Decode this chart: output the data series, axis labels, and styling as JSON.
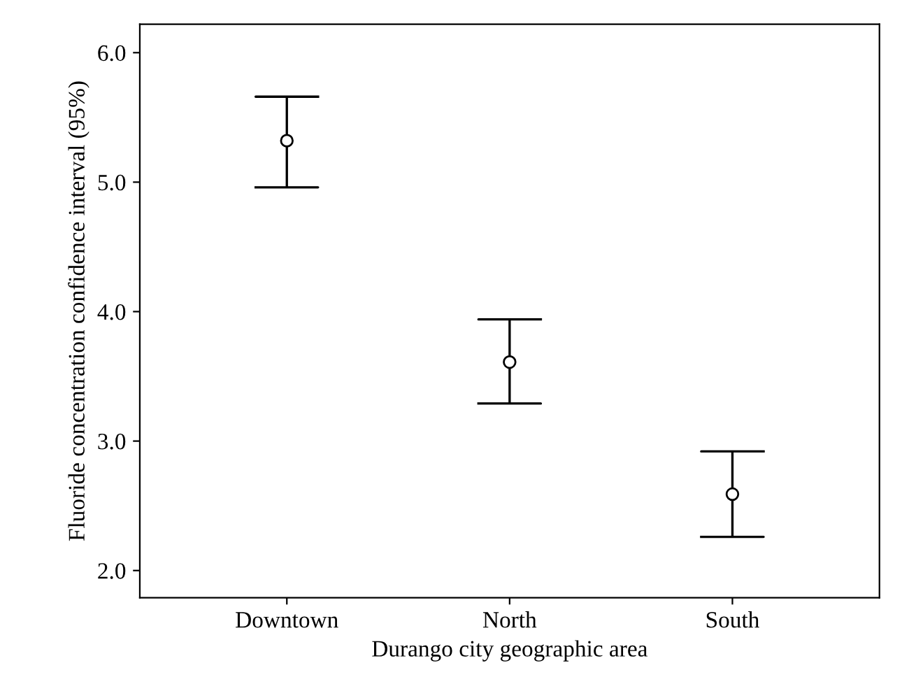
{
  "chart_data": {
    "type": "scatter",
    "xlabel": "Durango city geographic area",
    "ylabel": "Fluoride concentration confidence interval (95%)",
    "categories": [
      "Downtown",
      "North",
      "South"
    ],
    "color": "#000000",
    "values": [
      5.32,
      3.61,
      2.59
    ],
    "errors": [
      [
        4.96,
        5.66
      ],
      [
        3.29,
        3.94
      ],
      [
        2.26,
        2.92
      ]
    ],
    "ylim": [
      1.79,
      6.22
    ],
    "yticks": [
      {
        "value": 2,
        "label": "2.0"
      },
      {
        "value": 3,
        "label": "3.0"
      },
      {
        "value": 4,
        "label": "4.0"
      },
      {
        "value": 5,
        "label": "5.0"
      },
      {
        "value": 6,
        "label": "6.0"
      }
    ],
    "marker": "circle",
    "grid": false,
    "legend": false
  }
}
